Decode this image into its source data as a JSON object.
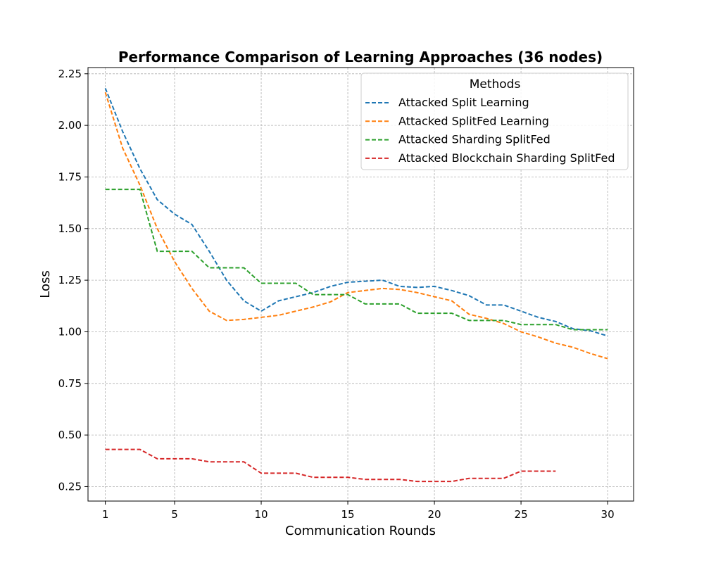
{
  "chart_data": {
    "type": "line",
    "title": "Performance Comparison of Learning Approaches (36 nodes)",
    "xlabel": "Communication Rounds",
    "ylabel": "Loss",
    "xlim": [
      0,
      31.5
    ],
    "ylim": [
      0.18,
      2.28
    ],
    "x_ticks": [
      1,
      5,
      10,
      15,
      20,
      25,
      30
    ],
    "y_ticks": [
      0.25,
      0.5,
      0.75,
      1.0,
      1.25,
      1.5,
      1.75,
      2.0,
      2.25
    ],
    "x_tick_labels": [
      "1",
      "5",
      "10",
      "15",
      "20",
      "25",
      "30"
    ],
    "y_tick_labels": [
      "0.25",
      "0.50",
      "0.75",
      "1.00",
      "1.25",
      "1.50",
      "1.75",
      "2.00",
      "2.25"
    ],
    "grid": true,
    "line_style": "dashed",
    "legend": {
      "title": "Methods",
      "placement": "top-right"
    },
    "series": [
      {
        "name": "Attacked Split Learning",
        "color": "#1f77b4",
        "x": [
          1,
          2,
          3,
          4,
          5,
          6,
          7,
          8,
          9,
          10,
          11,
          12,
          13,
          14,
          15,
          16,
          17,
          18,
          19,
          20,
          21,
          22,
          23,
          24,
          25,
          26,
          27,
          28,
          29,
          30
        ],
        "values": [
          2.18,
          1.97,
          1.79,
          1.64,
          1.57,
          1.52,
          1.39,
          1.25,
          1.15,
          1.1,
          1.15,
          1.17,
          1.19,
          1.22,
          1.24,
          1.245,
          1.25,
          1.22,
          1.215,
          1.22,
          1.2,
          1.175,
          1.13,
          1.13,
          1.1,
          1.07,
          1.05,
          1.015,
          1.005,
          0.98
        ]
      },
      {
        "name": "Attacked SplitFed Learning",
        "color": "#ff7f0e",
        "x": [
          1,
          2,
          3,
          4,
          5,
          6,
          7,
          8,
          9,
          10,
          11,
          12,
          13,
          14,
          15,
          16,
          17,
          18,
          19,
          20,
          21,
          22,
          23,
          24,
          25,
          26,
          27,
          28,
          29,
          30
        ],
        "values": [
          2.16,
          1.89,
          1.71,
          1.5,
          1.34,
          1.21,
          1.1,
          1.055,
          1.06,
          1.07,
          1.08,
          1.1,
          1.12,
          1.145,
          1.19,
          1.2,
          1.21,
          1.205,
          1.19,
          1.17,
          1.15,
          1.085,
          1.065,
          1.04,
          1.0,
          0.975,
          0.945,
          0.925,
          0.895,
          0.87
        ]
      },
      {
        "name": "Attacked Sharding SplitFed",
        "color": "#2ca02c",
        "x": [
          1,
          2,
          3,
          4,
          5,
          6,
          7,
          8,
          9,
          10,
          11,
          12,
          13,
          14,
          15,
          16,
          17,
          18,
          19,
          20,
          21,
          22,
          23,
          24,
          25,
          26,
          27,
          28,
          29,
          30
        ],
        "values": [
          1.69,
          1.69,
          1.69,
          1.39,
          1.39,
          1.39,
          1.31,
          1.31,
          1.31,
          1.235,
          1.235,
          1.235,
          1.18,
          1.18,
          1.18,
          1.135,
          1.135,
          1.135,
          1.09,
          1.09,
          1.09,
          1.055,
          1.055,
          1.055,
          1.035,
          1.035,
          1.035,
          1.01,
          1.01,
          1.01
        ]
      },
      {
        "name": "Attacked Blockchain Sharding SplitFed",
        "color": "#d62728",
        "x": [
          1,
          2,
          3,
          4,
          5,
          6,
          7,
          8,
          9,
          10,
          11,
          12,
          13,
          14,
          15,
          16,
          17,
          18,
          19,
          20,
          21,
          22,
          23,
          24,
          25,
          26,
          27
        ],
        "values": [
          0.43,
          0.43,
          0.43,
          0.385,
          0.385,
          0.385,
          0.37,
          0.37,
          0.37,
          0.315,
          0.315,
          0.315,
          0.295,
          0.295,
          0.295,
          0.285,
          0.285,
          0.285,
          0.275,
          0.275,
          0.275,
          0.29,
          0.29,
          0.29,
          0.325,
          0.325,
          0.325
        ]
      }
    ]
  }
}
